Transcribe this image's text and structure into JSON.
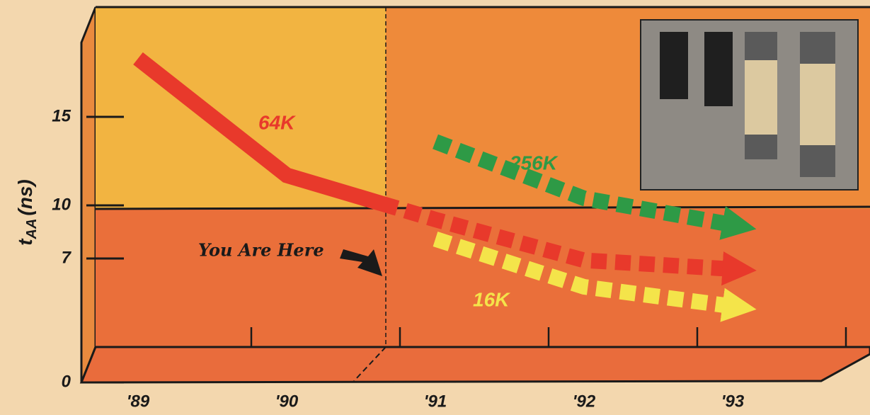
{
  "chart_data": {
    "type": "line",
    "y_label": "t",
    "y_label_sub": "AA",
    "y_label_unit": "(ns)",
    "annotation": "You Are Here",
    "categories": [
      "'89",
      "'90",
      "'91",
      "'92",
      "'93"
    ],
    "series": [
      {
        "name": "64K",
        "color": "#e8392b",
        "values": [
          18.3,
          11.7,
          9.2,
          6.9,
          6.4
        ]
      },
      {
        "name": "256K",
        "color": "#2e9a46",
        "values": [
          null,
          null,
          13.6,
          10.4,
          8.9
        ]
      },
      {
        "name": "16K",
        "color": "#f4e44a",
        "values": [
          null,
          null,
          8.1,
          5.4,
          4.3
        ]
      }
    ],
    "ylim": [
      0,
      20
    ],
    "yticks": [
      0,
      7,
      10,
      15
    ]
  }
}
